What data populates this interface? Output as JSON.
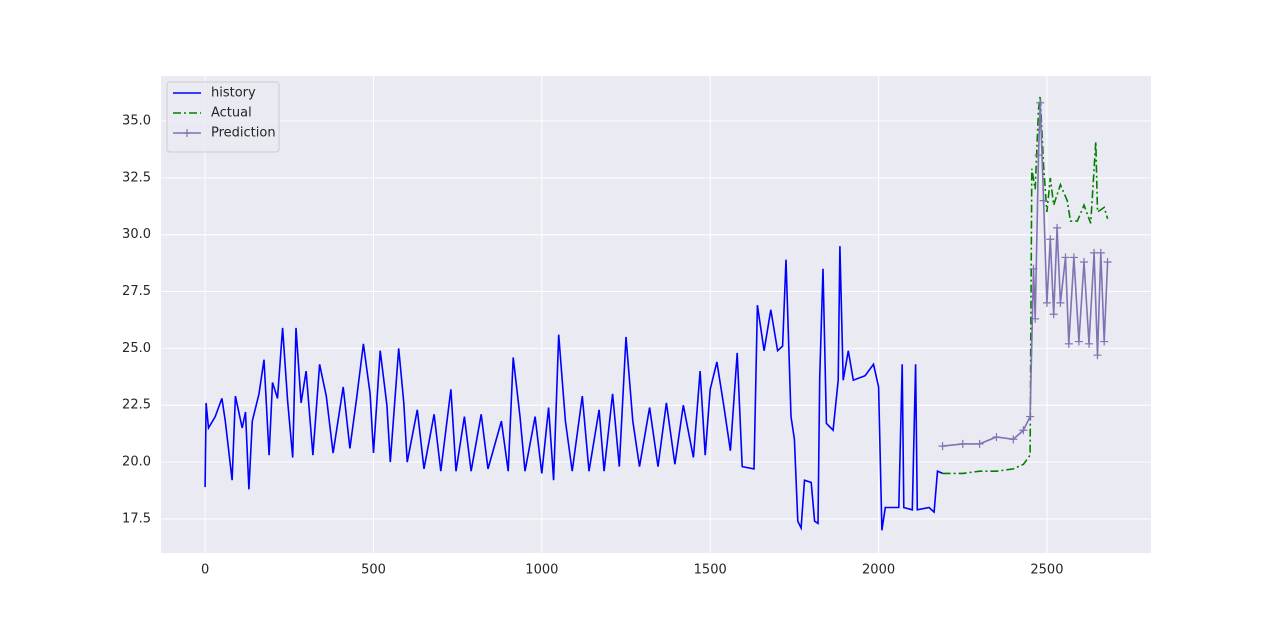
{
  "chart_data": {
    "type": "line",
    "xlim": [
      -131,
      2809
    ],
    "ylim": [
      16.0,
      36.98
    ],
    "xticks": [
      0,
      500,
      1000,
      1500,
      2000,
      2500
    ],
    "yticks": [
      17.5,
      {
        "value": 20,
        "label": "20.0"
      },
      22.5,
      {
        "value": 25,
        "label": "25.0"
      },
      27.5,
      {
        "value": 30,
        "label": "30.0"
      },
      32.5,
      {
        "value": 35,
        "label": "35.0"
      }
    ],
    "grid": true,
    "legend": "upper left",
    "series": [
      {
        "name": "history",
        "color": "#0000ff",
        "linestyle": "-",
        "x": [
          0,
          3,
          10,
          30,
          50,
          60,
          80,
          90,
          110,
          120,
          130,
          140,
          160,
          175,
          190,
          200,
          215,
          230,
          245,
          260,
          270,
          285,
          300,
          320,
          340,
          360,
          380,
          410,
          430,
          450,
          470,
          490,
          500,
          520,
          540,
          550,
          575,
          590,
          600,
          630,
          650,
          680,
          700,
          730,
          745,
          770,
          790,
          820,
          840,
          880,
          900,
          915,
          935,
          950,
          980,
          1000,
          1020,
          1035,
          1050,
          1070,
          1090,
          1120,
          1140,
          1170,
          1185,
          1210,
          1230,
          1250,
          1270,
          1290,
          1320,
          1345,
          1370,
          1395,
          1420,
          1450,
          1470,
          1485,
          1500,
          1520,
          1540,
          1560,
          1580,
          1595,
          1630,
          1640,
          1660,
          1680,
          1700,
          1715,
          1725,
          1740,
          1750,
          1760,
          1770,
          1780,
          1800,
          1810,
          1820,
          1825,
          1835,
          1845,
          1865,
          1880,
          1885,
          1895,
          1910,
          1925,
          1960,
          1985,
          2000,
          2010,
          2020,
          2060,
          2070,
          2075,
          2100,
          2110,
          2115,
          2150,
          2165,
          2175,
          2190
        ],
        "values": [
          18.9,
          22.6,
          21.5,
          22.0,
          22.8,
          21.8,
          19.2,
          22.9,
          21.5,
          22.2,
          18.8,
          21.8,
          23.0,
          24.5,
          20.3,
          23.5,
          22.8,
          25.9,
          22.7,
          20.2,
          25.9,
          22.6,
          24.0,
          20.3,
          24.3,
          22.9,
          20.4,
          23.3,
          20.6,
          22.8,
          25.2,
          23.0,
          20.4,
          24.9,
          22.5,
          20.0,
          25.0,
          22.6,
          20.0,
          22.3,
          19.7,
          22.1,
          19.6,
          23.2,
          19.6,
          22.0,
          19.6,
          22.1,
          19.7,
          21.8,
          19.6,
          24.6,
          22.0,
          19.6,
          22.0,
          19.5,
          22.4,
          19.2,
          25.6,
          21.8,
          19.6,
          22.9,
          19.6,
          22.3,
          19.6,
          23.0,
          19.8,
          25.5,
          21.8,
          19.8,
          22.4,
          19.8,
          22.6,
          19.9,
          22.5,
          20.2,
          24.0,
          20.3,
          23.2,
          24.4,
          22.5,
          20.5,
          24.8,
          19.8,
          19.7,
          26.9,
          24.9,
          26.7,
          24.9,
          25.1,
          28.9,
          22.0,
          21.0,
          17.4,
          17.1,
          19.2,
          19.1,
          17.4,
          17.3,
          23.7,
          28.5,
          21.7,
          21.4,
          23.6,
          29.5,
          23.6,
          24.9,
          23.6,
          23.8,
          24.3,
          23.3,
          17.0,
          18.0,
          18.0,
          24.3,
          18.0,
          17.9,
          24.3,
          17.9,
          18.0,
          17.8,
          19.6,
          19.5
        ]
      },
      {
        "name": "Actual",
        "color": "#008000",
        "linestyle": "-.",
        "x": [
          2190,
          2250,
          2300,
          2350,
          2400,
          2430,
          2450,
          2455,
          2465,
          2475,
          2480,
          2490,
          2500,
          2510,
          2520,
          2540,
          2560,
          2570,
          2590,
          2610,
          2630,
          2645,
          2650,
          2670,
          2680
        ],
        "values": [
          19.5,
          19.5,
          19.6,
          19.6,
          19.7,
          19.9,
          20.3,
          32.9,
          32.0,
          35.5,
          36.1,
          33.0,
          31.0,
          32.5,
          31.3,
          32.2,
          31.5,
          30.6,
          30.6,
          31.3,
          30.5,
          34.1,
          31.0,
          31.2,
          30.7
        ]
      },
      {
        "name": "Prediction",
        "color": "#8172b3",
        "linestyle": "-",
        "marker": "+",
        "x": [
          2190,
          2250,
          2300,
          2350,
          2400,
          2430,
          2450,
          2460,
          2465,
          2475,
          2480,
          2490,
          2500,
          2510,
          2520,
          2530,
          2540,
          2555,
          2565,
          2580,
          2595,
          2610,
          2625,
          2640,
          2650,
          2660,
          2670,
          2680
        ],
        "values": [
          20.7,
          20.8,
          20.8,
          21.1,
          21.0,
          21.4,
          22.0,
          28.5,
          26.3,
          33.5,
          35.8,
          31.5,
          27.0,
          29.8,
          26.5,
          30.3,
          27.0,
          29.0,
          25.2,
          29.0,
          25.3,
          28.8,
          25.2,
          29.2,
          24.7,
          29.2,
          25.3,
          28.8
        ]
      }
    ]
  }
}
